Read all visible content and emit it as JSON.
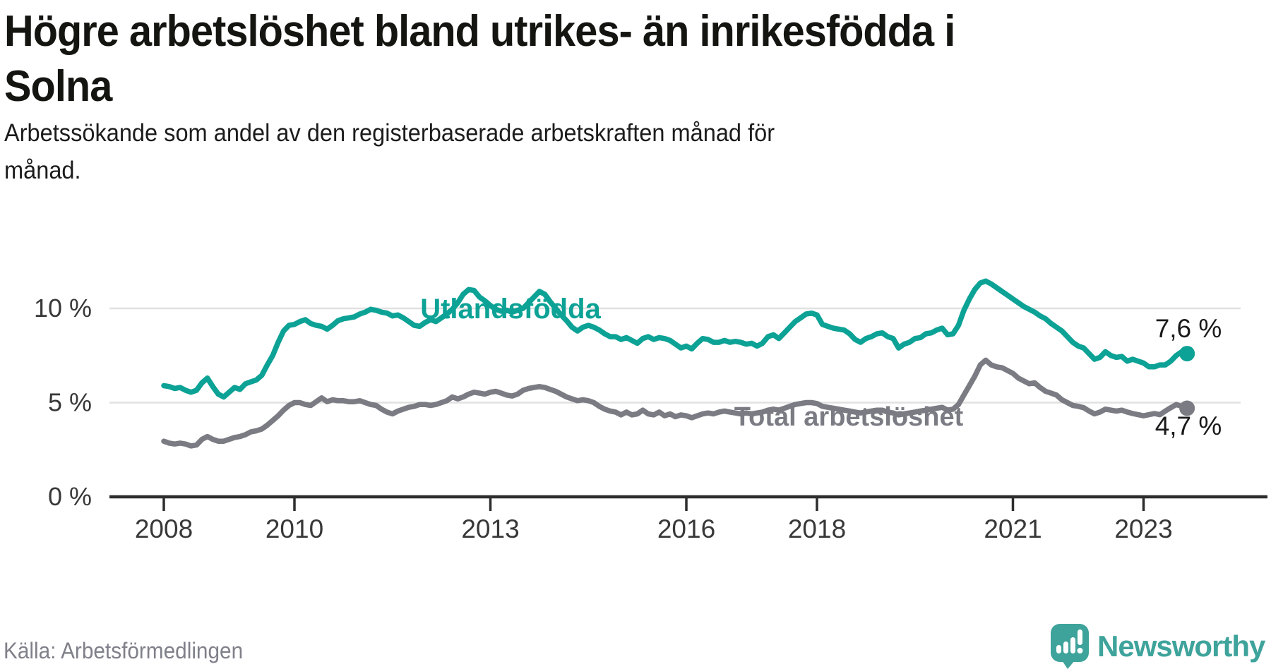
{
  "header": {
    "title_lines": [
      "Högre arbetslöshet bland utrikes- än inrikesfödda i",
      "Solna"
    ],
    "subtitle_lines": [
      "Arbetssökande som andel av den registerbaserade arbetskraften månad för",
      "månad."
    ]
  },
  "chart_data": {
    "type": "line",
    "title": "Högre arbetslöshet bland utrikes- än inrikesfödda i Solna",
    "subtitle": "Arbetssökande som andel av den registerbaserade arbetskraften månad för månad.",
    "unit": "%",
    "x_start_year": 2008,
    "x_end": "2023-09",
    "points_per_year": 12,
    "x_tick_years": [
      2008,
      2010,
      2013,
      2016,
      2018,
      2021,
      2023
    ],
    "x_tick_labels": [
      "2008",
      "2010",
      "2013",
      "2016",
      "2018",
      "2021",
      "2023"
    ],
    "y_ticks": [
      {
        "value": 0,
        "label": "0 %"
      },
      {
        "value": 5,
        "label": "5 %"
      },
      {
        "value": 10,
        "label": "10 %"
      }
    ],
    "ylim": [
      0,
      12.5
    ],
    "grid": "horizontal",
    "legend_position": "inline-labels",
    "series": [
      {
        "name": "Utlandsfödda",
        "color": "#0ca295",
        "end_label": "7,6 %",
        "last_value": 7.6,
        "values": [
          5.9,
          5.85,
          5.75,
          5.8,
          5.65,
          5.55,
          5.65,
          6.05,
          6.3,
          5.85,
          5.45,
          5.3,
          5.55,
          5.8,
          5.7,
          6.0,
          6.1,
          6.2,
          6.45,
          7.0,
          7.5,
          8.2,
          8.8,
          9.1,
          9.15,
          9.3,
          9.4,
          9.2,
          9.1,
          9.05,
          8.9,
          9.1,
          9.35,
          9.45,
          9.5,
          9.55,
          9.7,
          9.8,
          9.95,
          9.9,
          9.8,
          9.75,
          9.6,
          9.65,
          9.5,
          9.3,
          9.1,
          9.05,
          9.25,
          9.4,
          9.3,
          9.5,
          9.7,
          9.95,
          10.3,
          10.75,
          11.0,
          10.95,
          10.6,
          10.4,
          10.15,
          9.95,
          9.85,
          9.9,
          9.8,
          9.9,
          10.0,
          10.3,
          10.6,
          10.9,
          10.75,
          10.35,
          10.0,
          9.65,
          9.35,
          9.0,
          8.8,
          9.0,
          9.1,
          9.0,
          8.85,
          8.65,
          8.5,
          8.5,
          8.35,
          8.45,
          8.3,
          8.15,
          8.4,
          8.5,
          8.35,
          8.45,
          8.4,
          8.3,
          8.1,
          7.9,
          8.0,
          7.85,
          8.15,
          8.4,
          8.35,
          8.2,
          8.2,
          8.3,
          8.2,
          8.25,
          8.2,
          8.1,
          8.15,
          8.0,
          8.15,
          8.5,
          8.6,
          8.4,
          8.7,
          9.0,
          9.3,
          9.5,
          9.7,
          9.75,
          9.65,
          9.15,
          9.05,
          8.95,
          8.9,
          8.85,
          8.65,
          8.35,
          8.2,
          8.4,
          8.5,
          8.65,
          8.7,
          8.5,
          8.4,
          7.9,
          8.1,
          8.2,
          8.4,
          8.45,
          8.65,
          8.7,
          8.85,
          8.95,
          8.6,
          8.65,
          9.1,
          9.9,
          10.5,
          11.0,
          11.35,
          11.45,
          11.3,
          11.1,
          10.9,
          10.7,
          10.5,
          10.3,
          10.1,
          9.95,
          9.8,
          9.6,
          9.45,
          9.2,
          9.0,
          8.8,
          8.5,
          8.2,
          8.0,
          7.9,
          7.6,
          7.3,
          7.4,
          7.7,
          7.5,
          7.4,
          7.45,
          7.2,
          7.3,
          7.2,
          7.1,
          6.9,
          6.9,
          7.0,
          7.0,
          7.2,
          7.5,
          7.7,
          7.6
        ]
      },
      {
        "name": "Total arbetslöshet",
        "color": "#7b7b83",
        "end_label": "4,7 %",
        "last_value": 4.7,
        "values": [
          2.95,
          2.85,
          2.8,
          2.85,
          2.8,
          2.7,
          2.75,
          3.05,
          3.2,
          3.05,
          2.95,
          2.95,
          3.05,
          3.15,
          3.2,
          3.3,
          3.45,
          3.5,
          3.6,
          3.8,
          4.05,
          4.3,
          4.6,
          4.85,
          5.0,
          5.0,
          4.9,
          4.85,
          5.05,
          5.25,
          5.05,
          5.15,
          5.1,
          5.1,
          5.05,
          5.05,
          5.1,
          5.0,
          4.9,
          4.85,
          4.65,
          4.5,
          4.4,
          4.55,
          4.65,
          4.75,
          4.8,
          4.9,
          4.9,
          4.85,
          4.9,
          5.0,
          5.1,
          5.3,
          5.2,
          5.3,
          5.45,
          5.55,
          5.5,
          5.45,
          5.55,
          5.6,
          5.5,
          5.4,
          5.35,
          5.45,
          5.65,
          5.75,
          5.8,
          5.85,
          5.8,
          5.7,
          5.6,
          5.45,
          5.3,
          5.2,
          5.1,
          5.15,
          5.1,
          5.0,
          4.8,
          4.65,
          4.55,
          4.5,
          4.35,
          4.5,
          4.35,
          4.4,
          4.6,
          4.4,
          4.35,
          4.5,
          4.3,
          4.4,
          4.25,
          4.35,
          4.3,
          4.2,
          4.3,
          4.4,
          4.45,
          4.4,
          4.5,
          4.55,
          4.5,
          4.45,
          4.4,
          4.45,
          4.4,
          4.45,
          4.5,
          4.6,
          4.65,
          4.6,
          4.7,
          4.8,
          4.9,
          4.95,
          5.0,
          5.0,
          4.95,
          4.8,
          4.75,
          4.7,
          4.65,
          4.6,
          4.55,
          4.5,
          4.45,
          4.5,
          4.55,
          4.6,
          4.6,
          4.5,
          4.45,
          4.35,
          4.4,
          4.45,
          4.5,
          4.55,
          4.6,
          4.65,
          4.7,
          4.75,
          4.6,
          4.65,
          4.9,
          5.4,
          5.9,
          6.4,
          7.0,
          7.25,
          7.0,
          6.9,
          6.85,
          6.7,
          6.55,
          6.3,
          6.15,
          6.0,
          6.05,
          5.8,
          5.6,
          5.5,
          5.4,
          5.15,
          5.0,
          4.85,
          4.8,
          4.73,
          4.55,
          4.4,
          4.5,
          4.65,
          4.6,
          4.55,
          4.6,
          4.5,
          4.42,
          4.36,
          4.3,
          4.36,
          4.42,
          4.36,
          4.55,
          4.73,
          4.9,
          4.8,
          4.7
        ]
      }
    ]
  },
  "source": {
    "label": "Källa: Arbetsförmedlingen"
  },
  "branding": {
    "name": "Newsworthy",
    "color": "#3ea39b",
    "icon": "newsworthy-bubble-chart-icon"
  },
  "style": {
    "grid_color": "#e1e1e1",
    "axis_color": "#2d2d2d",
    "tick_text_color": "#383838"
  }
}
